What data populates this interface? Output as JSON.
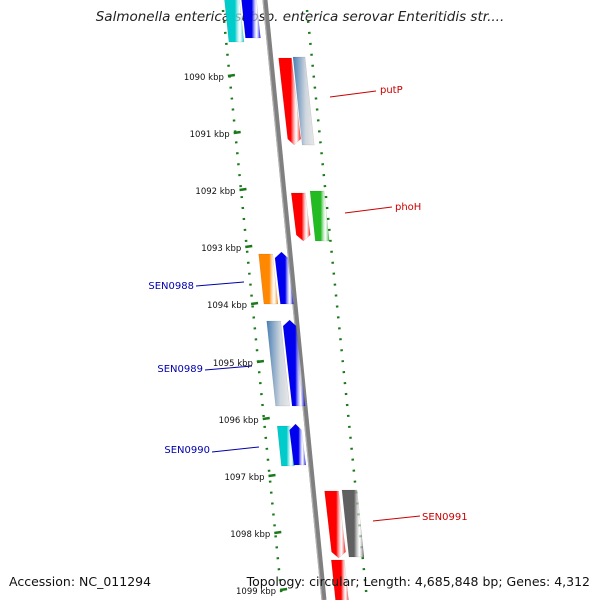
{
  "header": {
    "title": "Salmonella enterica subsp. enterica serovar Enteritidis str...."
  },
  "footer": {
    "accession": "Accession: NC_011294",
    "topology": "Topology: circular; Length: 4,685,848 bp; Genes: 4,312"
  },
  "map": {
    "ticks": [
      {
        "label": "1090 kbp"
      },
      {
        "label": "1091 kbp"
      },
      {
        "label": "1092 kbp"
      },
      {
        "label": "1093 kbp"
      },
      {
        "label": "1094 kbp"
      },
      {
        "label": "1095 kbp"
      },
      {
        "label": "1096 kbp"
      },
      {
        "label": "1097 kbp"
      },
      {
        "label": "1098 kbp"
      },
      {
        "label": "1099 kbp"
      }
    ],
    "gene_labels": [
      {
        "name": "putP",
        "color": "#cc0000"
      },
      {
        "name": "phoH",
        "color": "#cc0000"
      },
      {
        "name": "SEN0988",
        "color": "#0000aa"
      },
      {
        "name": "SEN0989",
        "color": "#0000aa"
      },
      {
        "name": "SEN0990",
        "color": "#0000aa"
      },
      {
        "name": "SEN0991",
        "color": "#cc0000"
      }
    ],
    "colors": {
      "backbone": "#808080",
      "tick_mark": "#1a7a1a",
      "red": "#ff0000",
      "blue": "#0000ee",
      "steelblue": "#4a7fb5",
      "cyan": "#00cccc",
      "orange": "#ff8800",
      "green": "#22bb22",
      "gray": "#606060"
    }
  }
}
